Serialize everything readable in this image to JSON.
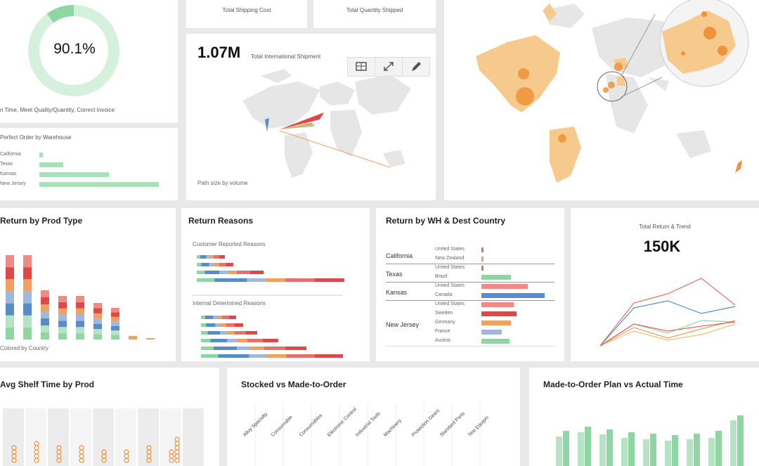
{
  "kpi": {
    "value": "90.1%",
    "caption": "n Time, Meet Quality/Quantity, Correct Invoice",
    "fraction": 0.901
  },
  "top_cards": {
    "shipping_cost": "Total Shipping Cost",
    "quantity_shipped": "Total Quantity Shipped"
  },
  "perfect_order": {
    "title": "Perfect Order by Warehouse",
    "rows": [
      {
        "label": "California",
        "value": 0.03
      },
      {
        "label": "Texas",
        "value": 0.2
      },
      {
        "label": "Kansas",
        "value": 0.58
      },
      {
        "label": "New Jersey",
        "value": 1.0
      }
    ]
  },
  "intl": {
    "value": "1.07M",
    "label": "Total International Shipment",
    "footer": "Path size by volume",
    "tools": [
      "table-icon",
      "expand-icon",
      "edit-icon"
    ]
  },
  "return_prod": {
    "title": "Return by Prod Type",
    "footer": "Colored by Country"
  },
  "return_reasons": {
    "title": "Return Reasons",
    "customer_label": "Customer Reported Reasons",
    "internal_label": "Internal Determined Reasons"
  },
  "return_wh": {
    "title": "Return by WH & Dest Country",
    "groups": [
      {
        "name": "California",
        "rows": [
          {
            "label": "United States",
            "value": 0.02,
            "color": "#e8706a"
          },
          {
            "label": "New Zealand",
            "value": 0.02,
            "color": "#f0a060"
          }
        ]
      },
      {
        "name": "Texas",
        "rows": [
          {
            "label": "United States",
            "value": 0.02,
            "color": "#e8706a"
          },
          {
            "label": "Brazil",
            "value": 0.38,
            "color": "#8fd6a4"
          }
        ]
      },
      {
        "name": "Kansas",
        "rows": [
          {
            "label": "United States",
            "value": 0.6,
            "color": "#f08a84"
          },
          {
            "label": "Canada",
            "value": 0.82,
            "color": "#5a8bc9"
          }
        ]
      },
      {
        "name": "New Jersey",
        "rows": [
          {
            "label": "United States",
            "value": 0.42,
            "color": "#f08a84"
          },
          {
            "label": "Sweden",
            "value": 0.45,
            "color": "#e04848"
          },
          {
            "label": "Germany",
            "value": 0.38,
            "color": "#f0a060"
          },
          {
            "label": "France",
            "value": 0.26,
            "color": "#9fb8e0"
          },
          {
            "label": "Austria",
            "value": 0.36,
            "color": "#8fd6a4"
          }
        ]
      }
    ]
  },
  "total_return": {
    "title": "Total Return & Trend",
    "value": "150K"
  },
  "avg_shelf": {
    "title": "Avg Shelf Time by Prod"
  },
  "stocked": {
    "title": "Stocked vs Made-to-Order",
    "categories": [
      "Alloy Specialty",
      "Consumable",
      "Consumables",
      "Electronic Control",
      "Industrial Tools",
      "Machinery",
      "Protection Gears",
      "Standard Parts",
      "Test Equipm"
    ]
  },
  "plan_actual": {
    "title": "Made-to-Order Plan vs Actual Time"
  },
  "colors": {
    "accent_green": "#8fd6a4",
    "map_land": "#e6e6e6",
    "map_highlight": "#f6c98c",
    "bubble": "#f0923a",
    "red": "#e8706a",
    "blue": "#5a8bc9",
    "orange": "#f0a060"
  }
}
